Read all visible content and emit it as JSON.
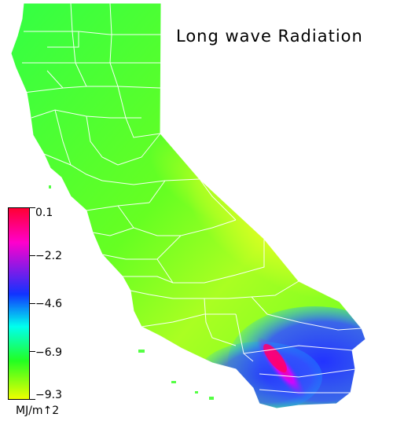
{
  "title": "Long wave Radiation",
  "legend": {
    "unit": "MJ/m↑2",
    "ticks": [
      "0.1",
      "−2.2",
      "−4.6",
      "−6.9",
      "−9.3"
    ],
    "colors": {
      "top": "#ff0033",
      "magenta": "#ff00cc",
      "blue": "#1133ff",
      "cyan": "#00ffee",
      "green": "#22ff22",
      "bottom": "#eeff00"
    }
  },
  "map": {
    "region": "California",
    "base_color": "#66ff22",
    "north_color": "#44ff44",
    "central_valley_color": "#bbff22",
    "south_desert_color": "#3344ff",
    "hotspot_color": "#ff00aa",
    "border_color": "#ffffff"
  }
}
